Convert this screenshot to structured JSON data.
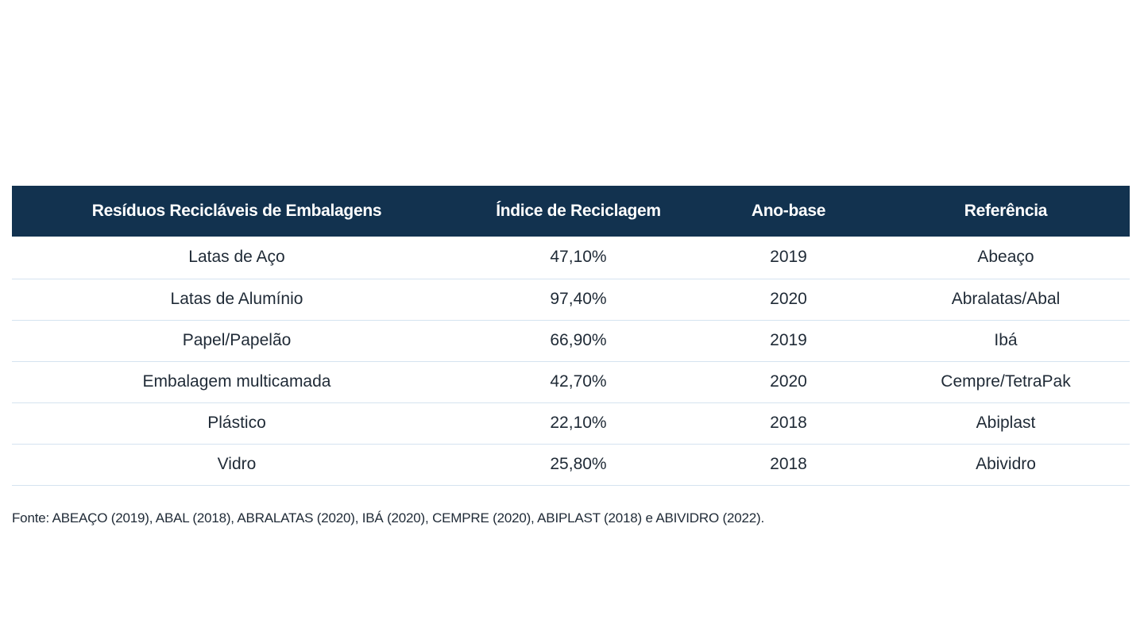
{
  "table": {
    "headers": [
      "Resíduos Recicláveis de Embalagens",
      "Índice de Reciclagem",
      "Ano-base",
      "Referência"
    ],
    "rows": [
      [
        "Latas de Aço",
        "47,10%",
        "2019",
        "Abeaço"
      ],
      [
        "Latas de Alumínio",
        "97,40%",
        "2020",
        "Abralatas/Abal"
      ],
      [
        "Papel/Papelão",
        "66,90%",
        "2019",
        "Ibá"
      ],
      [
        "Embalagem multicamada",
        "42,70%",
        "2020",
        "Cempre/TetraPak"
      ],
      [
        "Plástico",
        "22,10%",
        "2018",
        "Abiplast"
      ],
      [
        "Vidro",
        "25,80%",
        "2018",
        "Abividro"
      ]
    ]
  },
  "source": "Fonte: ABEAÇO (2019), ABAL (2018), ABRALATAS (2020), IBÁ (2020), CEMPRE (2020), ABIPLAST (2018) e ABIVIDRO (2022).",
  "colors": {
    "header_bg": "#12324f",
    "header_text": "#ffffff",
    "row_divider": "#d5e3f0",
    "body_text": "#1f2a36"
  }
}
